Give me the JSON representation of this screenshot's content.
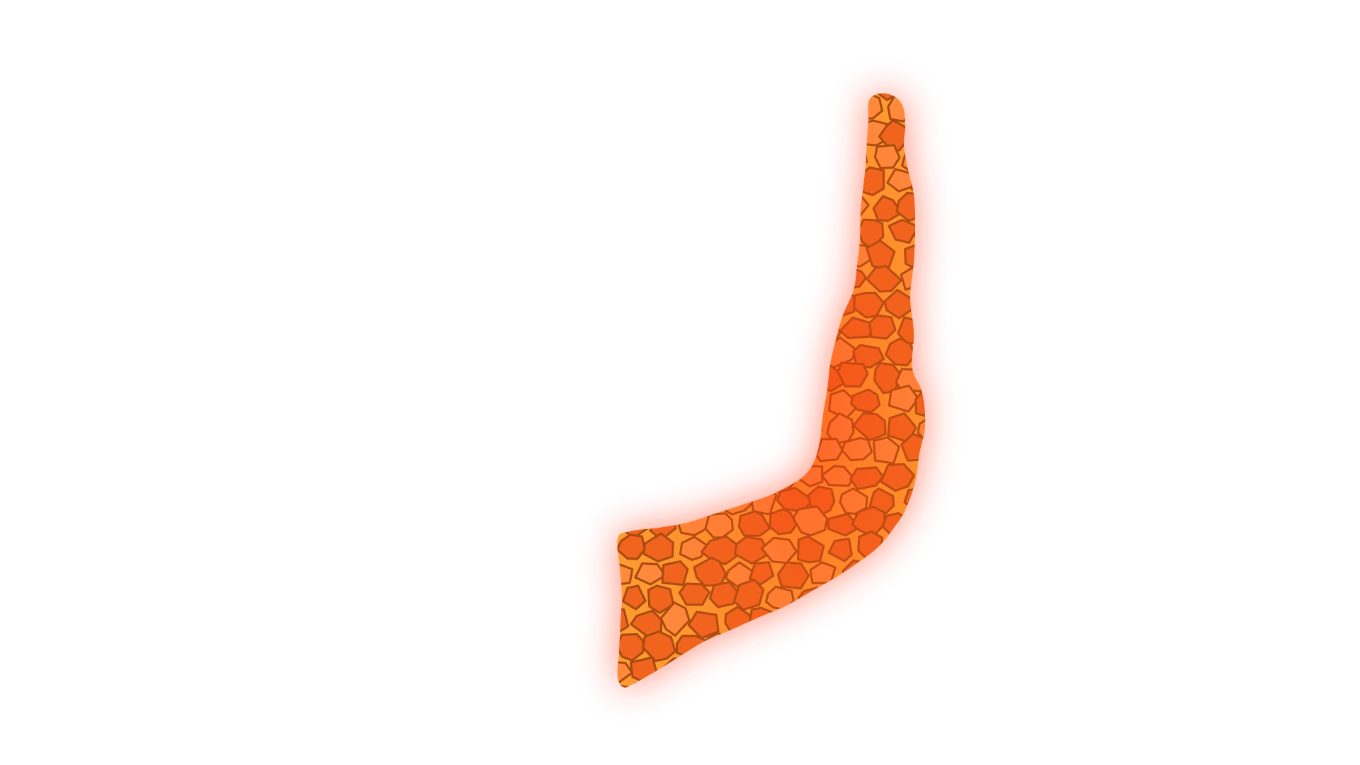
{
  "map": {
    "region_shape": "country-silhouette",
    "style": "cracked-lava-tiles-with-glow",
    "colors": {
      "background": "#ffffff",
      "glow": "#ff2a00",
      "tile_fill": "#f0641e",
      "tile_fill_light": "#ff8a3c",
      "tile_shadow": "#a64a10",
      "crack": "#ff9a30"
    }
  }
}
